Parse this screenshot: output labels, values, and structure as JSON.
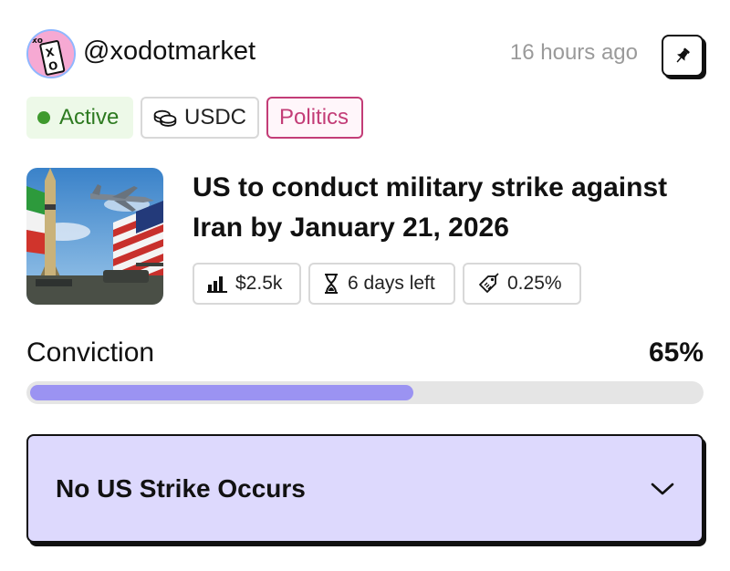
{
  "header": {
    "handle": "@xodotmarket",
    "time": "16 hours ago",
    "avatar_text": [
      "xo",
      "X",
      "O"
    ]
  },
  "tags": {
    "status": "Active",
    "currency": "USDC",
    "category": "Politics"
  },
  "market": {
    "title": "US to conduct military strike against Iran by January 21, 2026",
    "volume": "$2.5k",
    "time_left": "6 days left",
    "fee": "0.25%"
  },
  "conviction": {
    "label": "Conviction",
    "value_text": "65%",
    "fraction": 0.65
  },
  "outcome": {
    "selected": "No US Strike Occurs"
  },
  "colors": {
    "accent": "#9b93f2",
    "outcome_bg": "#ddd9fd",
    "active_green": "#3f9a2e",
    "politics_pink": "#c33d77"
  },
  "icons": [
    "pin-icon",
    "status-dot-icon",
    "coins-icon",
    "bar-chart-icon",
    "hourglass-icon",
    "tag-icon",
    "chevron-down-icon"
  ]
}
